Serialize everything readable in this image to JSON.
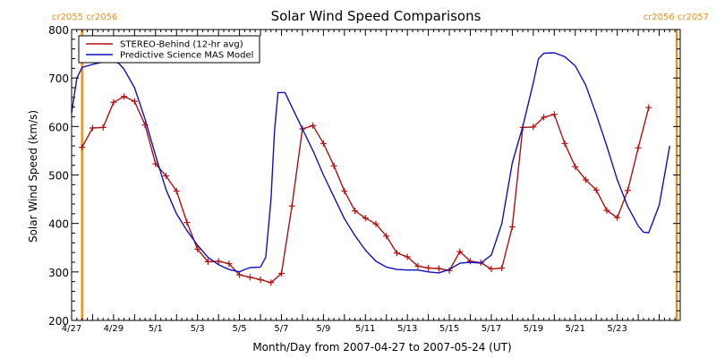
{
  "chart_data": {
    "type": "line",
    "title": "Solar Wind Speed Comparisons",
    "xlabel": "Month/Day from 2007-04-27 to 2007-05-24 (UT)",
    "ylabel": "Solar Wind Speed (km/s)",
    "xlim": [
      "2007-04-27",
      "2007-05-26"
    ],
    "ylim": [
      200,
      800
    ],
    "x_tick_labels": [
      "4/27",
      "4/29",
      "5/1",
      "5/3",
      "5/5",
      "5/7",
      "5/9",
      "5/11",
      "5/13",
      "5/15",
      "5/17",
      "5/19",
      "5/21",
      "5/23"
    ],
    "y_tick_labels": [
      "200",
      "300",
      "400",
      "500",
      "600",
      "700",
      "800"
    ],
    "legend": {
      "placement": "top-left"
    },
    "carrington_markers": [
      {
        "label": "cr2055 cr2056",
        "x": "2007-04-27 12:00",
        "color": "#f0901e"
      },
      {
        "label": "cr2056 cr2057",
        "x": "2007-05-25 20:00",
        "color": "#f0901e"
      }
    ],
    "series": [
      {
        "name": "STEREO-Behind (12-hr avg)",
        "color": "#b01010",
        "marker": "plus",
        "points": [
          [
            "2007-04-27 12:00",
            557
          ],
          [
            "2007-04-28 00:00",
            597
          ],
          [
            "2007-04-28 12:00",
            598
          ],
          [
            "2007-04-29 00:00",
            650
          ],
          [
            "2007-04-29 12:00",
            662
          ],
          [
            "2007-04-30 00:00",
            652
          ],
          [
            "2007-04-30 12:00",
            603
          ],
          [
            "2007-05-01 00:00",
            523
          ],
          [
            "2007-05-01 12:00",
            498
          ],
          [
            "2007-05-02 00:00",
            467
          ],
          [
            "2007-05-02 12:00",
            402
          ],
          [
            "2007-05-03 00:00",
            347
          ],
          [
            "2007-05-03 12:00",
            321
          ],
          [
            "2007-05-04 00:00",
            322
          ],
          [
            "2007-05-04 12:00",
            317
          ],
          [
            "2007-05-05 00:00",
            294
          ],
          [
            "2007-05-05 12:00",
            289
          ],
          [
            "2007-05-06 00:00",
            284
          ],
          [
            "2007-05-06 12:00",
            278
          ],
          [
            "2007-05-07 00:00",
            297
          ],
          [
            "2007-05-07 12:00",
            436
          ],
          [
            "2007-05-08 00:00",
            595
          ],
          [
            "2007-05-08 12:00",
            602
          ],
          [
            "2007-05-09 00:00",
            565
          ],
          [
            "2007-05-09 12:00",
            519
          ],
          [
            "2007-05-10 00:00",
            467
          ],
          [
            "2007-05-10 12:00",
            426
          ],
          [
            "2007-05-11 00:00",
            411
          ],
          [
            "2007-05-11 12:00",
            399
          ],
          [
            "2007-05-12 00:00",
            374
          ],
          [
            "2007-05-12 12:00",
            339
          ],
          [
            "2007-05-13 00:00",
            331
          ],
          [
            "2007-05-13 12:00",
            312
          ],
          [
            "2007-05-14 00:00",
            308
          ],
          [
            "2007-05-14 12:00",
            307
          ],
          [
            "2007-05-15 00:00",
            303
          ],
          [
            "2007-05-15 12:00",
            342
          ],
          [
            "2007-05-16 00:00",
            322
          ],
          [
            "2007-05-16 12:00",
            319
          ],
          [
            "2007-05-17 00:00",
            306
          ],
          [
            "2007-05-17 12:00",
            308
          ],
          [
            "2007-05-18 00:00",
            393
          ],
          [
            "2007-05-18 12:00",
            598
          ],
          [
            "2007-05-19 00:00",
            599
          ],
          [
            "2007-05-19 12:00",
            619
          ],
          [
            "2007-05-20 00:00",
            625
          ],
          [
            "2007-05-20 12:00",
            565
          ],
          [
            "2007-05-21 00:00",
            517
          ],
          [
            "2007-05-21 12:00",
            490
          ],
          [
            "2007-05-22 00:00",
            469
          ],
          [
            "2007-05-22 12:00",
            427
          ],
          [
            "2007-05-23 00:00",
            412
          ],
          [
            "2007-05-23 12:00",
            468
          ],
          [
            "2007-05-24 00:00",
            556
          ],
          [
            "2007-05-24 12:00",
            639
          ]
        ]
      },
      {
        "name": "Predictive Science MAS Model",
        "color": "#1010c0",
        "marker": "none",
        "points": [
          [
            "2007-04-27 00:00",
            628
          ],
          [
            "2007-04-27 06:00",
            700
          ],
          [
            "2007-04-27 12:00",
            722
          ],
          [
            "2007-04-28 00:00",
            728
          ],
          [
            "2007-04-28 12:00",
            733
          ],
          [
            "2007-04-29 00:00",
            735
          ],
          [
            "2007-04-29 06:00",
            730
          ],
          [
            "2007-04-29 12:00",
            718
          ],
          [
            "2007-04-30 00:00",
            680
          ],
          [
            "2007-04-30 12:00",
            615
          ],
          [
            "2007-05-01 00:00",
            540
          ],
          [
            "2007-05-01 12:00",
            470
          ],
          [
            "2007-05-02 00:00",
            420
          ],
          [
            "2007-05-02 12:00",
            385
          ],
          [
            "2007-05-03 00:00",
            355
          ],
          [
            "2007-05-03 12:00",
            330
          ],
          [
            "2007-05-04 00:00",
            315
          ],
          [
            "2007-05-04 12:00",
            305
          ],
          [
            "2007-05-05 00:00",
            300
          ],
          [
            "2007-05-05 06:00",
            305
          ],
          [
            "2007-05-05 12:00",
            309
          ],
          [
            "2007-05-06 00:00",
            310
          ],
          [
            "2007-05-06 06:00",
            330
          ],
          [
            "2007-05-06 12:00",
            450
          ],
          [
            "2007-05-06 16:00",
            590
          ],
          [
            "2007-05-06 20:00",
            670
          ],
          [
            "2007-05-07 04:00",
            670
          ],
          [
            "2007-05-07 12:00",
            640
          ],
          [
            "2007-05-08 00:00",
            595
          ],
          [
            "2007-05-08 12:00",
            550
          ],
          [
            "2007-05-09 00:00",
            500
          ],
          [
            "2007-05-09 12:00",
            455
          ],
          [
            "2007-05-10 00:00",
            410
          ],
          [
            "2007-05-10 12:00",
            375
          ],
          [
            "2007-05-11 00:00",
            345
          ],
          [
            "2007-05-11 12:00",
            322
          ],
          [
            "2007-05-12 00:00",
            310
          ],
          [
            "2007-05-12 12:00",
            305
          ],
          [
            "2007-05-13 00:00",
            304
          ],
          [
            "2007-05-13 12:00",
            304
          ],
          [
            "2007-05-14 00:00",
            300
          ],
          [
            "2007-05-14 12:00",
            298
          ],
          [
            "2007-05-15 00:00",
            305
          ],
          [
            "2007-05-15 12:00",
            318
          ],
          [
            "2007-05-16 00:00",
            320
          ],
          [
            "2007-05-16 12:00",
            318
          ],
          [
            "2007-05-17 00:00",
            335
          ],
          [
            "2007-05-17 12:00",
            400
          ],
          [
            "2007-05-18 00:00",
            525
          ],
          [
            "2007-05-18 12:00",
            600
          ],
          [
            "2007-05-19 00:00",
            690
          ],
          [
            "2007-05-19 06:00",
            740
          ],
          [
            "2007-05-19 12:00",
            751
          ],
          [
            "2007-05-20 00:00",
            752
          ],
          [
            "2007-05-20 12:00",
            744
          ],
          [
            "2007-05-21 00:00",
            725
          ],
          [
            "2007-05-21 12:00",
            685
          ],
          [
            "2007-05-22 00:00",
            625
          ],
          [
            "2007-05-22 12:00",
            560
          ],
          [
            "2007-05-23 00:00",
            490
          ],
          [
            "2007-05-23 12:00",
            435
          ],
          [
            "2007-05-24 00:00",
            395
          ],
          [
            "2007-05-24 06:00",
            382
          ],
          [
            "2007-05-24 12:00",
            381
          ],
          [
            "2007-05-25 00:00",
            438
          ],
          [
            "2007-05-25 12:00",
            560
          ]
        ]
      }
    ]
  }
}
